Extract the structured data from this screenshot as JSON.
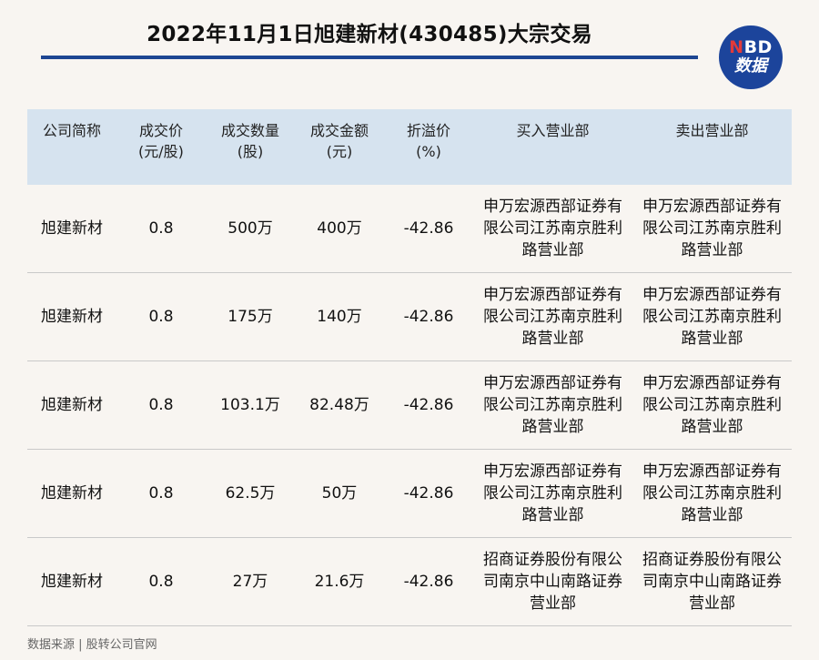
{
  "title": "2022年11月1日旭建新材(430485)大宗交易",
  "logo": {
    "top_n": "N",
    "top_rest": "BD",
    "bottom": "数据"
  },
  "table": {
    "headers": [
      {
        "line1": "公司简称",
        "line2": ""
      },
      {
        "line1": "成交价",
        "line2": "(元/股)"
      },
      {
        "line1": "成交数量",
        "line2": "(股)"
      },
      {
        "line1": "成交金额",
        "line2": "(元)"
      },
      {
        "line1": "折溢价",
        "line2": "(%)"
      },
      {
        "line1": "买入营业部",
        "line2": ""
      },
      {
        "line1": "卖出营业部",
        "line2": ""
      }
    ],
    "rows": [
      [
        "旭建新材",
        "0.8",
        "500万",
        "400万",
        "-42.86",
        "申万宏源西部证券有限公司江苏南京胜利路营业部",
        "申万宏源西部证券有限公司江苏南京胜利路营业部"
      ],
      [
        "旭建新材",
        "0.8",
        "175万",
        "140万",
        "-42.86",
        "申万宏源西部证券有限公司江苏南京胜利路营业部",
        "申万宏源西部证券有限公司江苏南京胜利路营业部"
      ],
      [
        "旭建新材",
        "0.8",
        "103.1万",
        "82.48万",
        "-42.86",
        "申万宏源西部证券有限公司江苏南京胜利路营业部",
        "申万宏源西部证券有限公司江苏南京胜利路营业部"
      ],
      [
        "旭建新材",
        "0.8",
        "62.5万",
        "50万",
        "-42.86",
        "申万宏源西部证券有限公司江苏南京胜利路营业部",
        "申万宏源西部证券有限公司江苏南京胜利路营业部"
      ],
      [
        "旭建新材",
        "0.8",
        "27万",
        "21.6万",
        "-42.86",
        "招商证券股份有限公司南京中山南路证券营业部",
        "招商证券股份有限公司南京中山南路证券营业部"
      ]
    ]
  },
  "source": "数据来源 | 股转公司官网"
}
